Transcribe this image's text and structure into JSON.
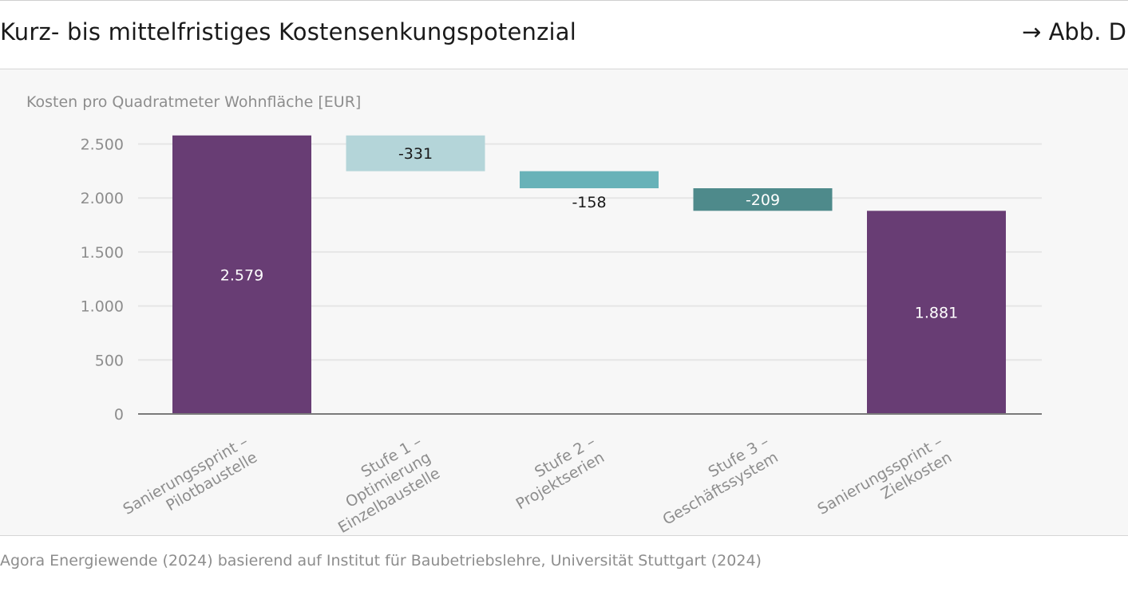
{
  "header": {
    "title": "Kurz- bis mittelfristiges Kostensenkungspotenzial",
    "figure_ref": "→ Abb. D"
  },
  "footer": {
    "source": "Agora Energiewende (2024) basierend auf Institut für Baubetriebslehre, Universität Stuttgart (2024)"
  },
  "colors": {
    "total": "#683d74",
    "step1": "#b4d5d9",
    "step2": "#68b2b8",
    "step3": "#4e8a8b",
    "grid": "#e6e6e6",
    "axis": "#7a7a7a",
    "tick_text": "#8d8d8d"
  },
  "chart_data": {
    "type": "bar",
    "subtype": "waterfall",
    "ylabel": "Kosten pro Quadratmeter Wohnfläche [EUR]",
    "ylim": [
      0,
      2750
    ],
    "yticks": [
      0,
      500,
      1000,
      1500,
      2000,
      2500
    ],
    "ytick_labels": [
      "0",
      "500",
      "1.000",
      "1.500",
      "2.000",
      "2.500"
    ],
    "grid": true,
    "categories": [
      [
        "Sanierungssprint –",
        "Pilotbaustelle"
      ],
      [
        "Stufe 1 –",
        "Optimierung",
        "Einzelbaustelle"
      ],
      [
        "Stufe 2 –",
        "Projektserien"
      ],
      [
        "Stufe 3 –",
        "Geschäftssystem"
      ],
      [
        "Sanierungssprint –",
        "Zielkosten"
      ]
    ],
    "bars": [
      {
        "kind": "total",
        "start": 0,
        "end": 2579,
        "label": "2.579",
        "color_key": "total",
        "label_pos": "inside",
        "label_color": "#ffffff"
      },
      {
        "kind": "delta",
        "start": 2579,
        "end": 2248,
        "label": "-331",
        "color_key": "step1",
        "label_pos": "inside",
        "label_color": "#1a1a1a"
      },
      {
        "kind": "delta",
        "start": 2248,
        "end": 2090,
        "label": "-158",
        "color_key": "step2",
        "label_pos": "below",
        "label_color": "#1a1a1a"
      },
      {
        "kind": "delta",
        "start": 2090,
        "end": 1881,
        "label": "-209",
        "color_key": "step3",
        "label_pos": "inside",
        "label_color": "#ffffff"
      },
      {
        "kind": "total",
        "start": 0,
        "end": 1881,
        "label": "1.881",
        "color_key": "total",
        "label_pos": "inside",
        "label_color": "#ffffff"
      }
    ]
  }
}
